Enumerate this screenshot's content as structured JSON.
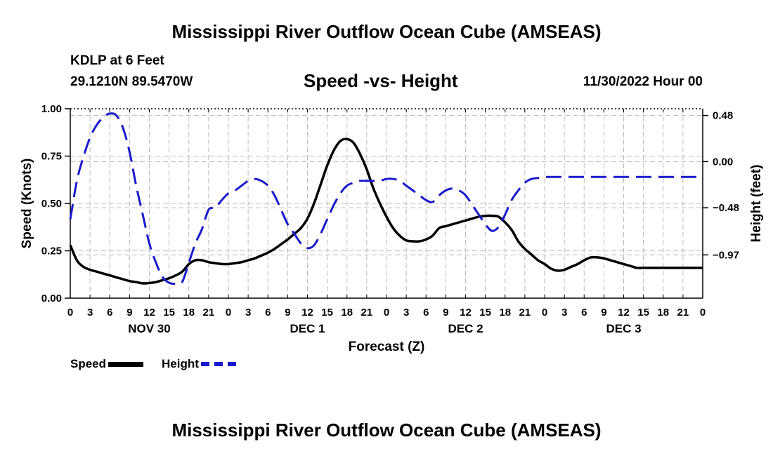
{
  "page_title": "Mississippi River Outflow Ocean Cube (AMSEAS)",
  "page_title_repeat": "Mississippi River Outflow Ocean Cube (AMSEAS)",
  "header": {
    "station": "KDLP at 6 Feet",
    "coords": "29.1210N  89.5470W",
    "subtitle": "Speed -vs- Height",
    "datetime": "11/30/2022 Hour 00"
  },
  "legend": {
    "speed_label": "Speed",
    "height_label": "Height"
  },
  "colors": {
    "speed": "#000000",
    "height": "#1a1acc",
    "grid": "#bbbbbb"
  },
  "chart_data": {
    "type": "line",
    "title": "Speed -vs- Height",
    "xlabel": "Forecast (Z)",
    "ylabel": "Speed (Knots)",
    "y2label": "Height (feet)",
    "x_range_hours": [
      0,
      96
    ],
    "x_ticks_hours": [
      0,
      3,
      6,
      9,
      12,
      15,
      18,
      21,
      24,
      27,
      30,
      33,
      36,
      39,
      42,
      45,
      48,
      51,
      54,
      57,
      60,
      63,
      66,
      69,
      72,
      75,
      78,
      81,
      84,
      87,
      90,
      93,
      96
    ],
    "x_tick_labels": [
      "0",
      "3",
      "6",
      "9",
      "12",
      "15",
      "18",
      "21",
      "0",
      "3",
      "6",
      "9",
      "12",
      "15",
      "18",
      "21",
      "0",
      "3",
      "6",
      "9",
      "12",
      "15",
      "18",
      "21",
      "0",
      "3",
      "6",
      "9",
      "12",
      "15",
      "18",
      "21",
      "0"
    ],
    "day_labels": [
      {
        "hour": 12,
        "label": "NOV 30"
      },
      {
        "hour": 36,
        "label": "DEC 1"
      },
      {
        "hour": 60,
        "label": "DEC 2"
      },
      {
        "hour": 84,
        "label": "DEC 3"
      }
    ],
    "ylim": [
      0,
      1
    ],
    "y_ticks": [
      0,
      0.25,
      0.5,
      0.75,
      1.0
    ],
    "y_tick_labels": [
      "0.00",
      "0.25",
      "0.50",
      "0.75",
      "1.00"
    ],
    "y2lim": [
      -1.42,
      0.55
    ],
    "y2_ticks": [
      0.48,
      0.0,
      -0.48,
      -0.97
    ],
    "y2_tick_labels": [
      "0.48",
      "0.00",
      "−0.48",
      "−0.97"
    ],
    "grid": true,
    "legend_position": "bottom-left",
    "series": [
      {
        "name": "Speed",
        "axis": "left",
        "style": "solid",
        "x": [
          0,
          1,
          2,
          3,
          4,
          5,
          6,
          7,
          8,
          9,
          10,
          11,
          12,
          13,
          14,
          15,
          16,
          17,
          18,
          19,
          20,
          21,
          22,
          23,
          24,
          25,
          26,
          27,
          28,
          29,
          30,
          31,
          32,
          33,
          34,
          35,
          36,
          37,
          38,
          39,
          40,
          41,
          42,
          43,
          44,
          45,
          46,
          47,
          48,
          49,
          50,
          51,
          52,
          53,
          54,
          55,
          56,
          57,
          58,
          59,
          60,
          61,
          62,
          63,
          64,
          65,
          66,
          67,
          68,
          69,
          70,
          71,
          72,
          73,
          74,
          75,
          76,
          77,
          78,
          79,
          80,
          81,
          82,
          83,
          84,
          85,
          86,
          87,
          88,
          89,
          90,
          91,
          92,
          93,
          94,
          95,
          96
        ],
        "values": [
          0.28,
          0.2,
          0.165,
          0.15,
          0.14,
          0.13,
          0.12,
          0.11,
          0.1,
          0.09,
          0.085,
          0.078,
          0.08,
          0.085,
          0.095,
          0.105,
          0.12,
          0.14,
          0.18,
          0.2,
          0.2,
          0.19,
          0.185,
          0.18,
          0.18,
          0.185,
          0.19,
          0.2,
          0.21,
          0.225,
          0.24,
          0.26,
          0.285,
          0.31,
          0.34,
          0.37,
          0.42,
          0.5,
          0.6,
          0.7,
          0.78,
          0.83,
          0.84,
          0.82,
          0.76,
          0.68,
          0.58,
          0.5,
          0.43,
          0.37,
          0.33,
          0.305,
          0.3,
          0.3,
          0.31,
          0.33,
          0.37,
          0.38,
          0.39,
          0.4,
          0.41,
          0.42,
          0.43,
          0.435,
          0.435,
          0.43,
          0.4,
          0.36,
          0.3,
          0.26,
          0.23,
          0.2,
          0.18,
          0.155,
          0.145,
          0.15,
          0.165,
          0.18,
          0.2,
          0.215,
          0.215,
          0.21,
          0.2,
          0.19,
          0.18,
          0.17,
          0.16,
          0.16,
          0.16,
          0.16,
          0.16,
          0.16,
          0.16,
          0.16,
          0.16,
          0.16,
          0.16
        ]
      },
      {
        "name": "Height",
        "axis": "right",
        "style": "dashed",
        "x": [
          0,
          1,
          2,
          3,
          4,
          5,
          6,
          7,
          8,
          9,
          10,
          11,
          12,
          13,
          14,
          15,
          16,
          17,
          18,
          19,
          20,
          21,
          22,
          23,
          24,
          25,
          26,
          27,
          28,
          29,
          30,
          31,
          32,
          33,
          34,
          35,
          36,
          37,
          38,
          39,
          40,
          41,
          42,
          43,
          44,
          45,
          46,
          47,
          48,
          49,
          50,
          51,
          52,
          53,
          54,
          55,
          56,
          57,
          58,
          59,
          60,
          61,
          62,
          63,
          64,
          65,
          66,
          67,
          68,
          69,
          70,
          71,
          72,
          73,
          74,
          75,
          76,
          77,
          78,
          79,
          80,
          81,
          82,
          83,
          84,
          85,
          86,
          87,
          88,
          89,
          90,
          91,
          92,
          93,
          94,
          95,
          96
        ],
        "values": [
          -0.6,
          -0.2,
          0.05,
          0.25,
          0.38,
          0.46,
          0.5,
          0.48,
          0.35,
          0.1,
          -0.25,
          -0.55,
          -0.85,
          -1.05,
          -1.2,
          -1.26,
          -1.27,
          -1.25,
          -1.05,
          -0.85,
          -0.7,
          -0.5,
          -0.48,
          -0.4,
          -0.33,
          -0.3,
          -0.25,
          -0.2,
          -0.18,
          -0.2,
          -0.25,
          -0.35,
          -0.5,
          -0.65,
          -0.75,
          -0.85,
          -0.9,
          -0.87,
          -0.75,
          -0.6,
          -0.45,
          -0.33,
          -0.25,
          -0.22,
          -0.2,
          -0.2,
          -0.2,
          -0.2,
          -0.18,
          -0.18,
          -0.2,
          -0.25,
          -0.3,
          -0.35,
          -0.4,
          -0.42,
          -0.35,
          -0.3,
          -0.28,
          -0.3,
          -0.35,
          -0.45,
          -0.55,
          -0.65,
          -0.72,
          -0.68,
          -0.55,
          -0.4,
          -0.3,
          -0.22,
          -0.18,
          -0.17,
          -0.16,
          -0.16,
          -0.16,
          -0.16,
          -0.16,
          -0.16,
          -0.16,
          -0.16,
          -0.16,
          -0.16,
          -0.16,
          -0.16,
          -0.16,
          -0.16,
          -0.16,
          -0.16,
          -0.16,
          -0.16,
          -0.16,
          -0.16,
          -0.16,
          -0.16,
          -0.16,
          -0.16,
          -0.16
        ]
      }
    ]
  }
}
